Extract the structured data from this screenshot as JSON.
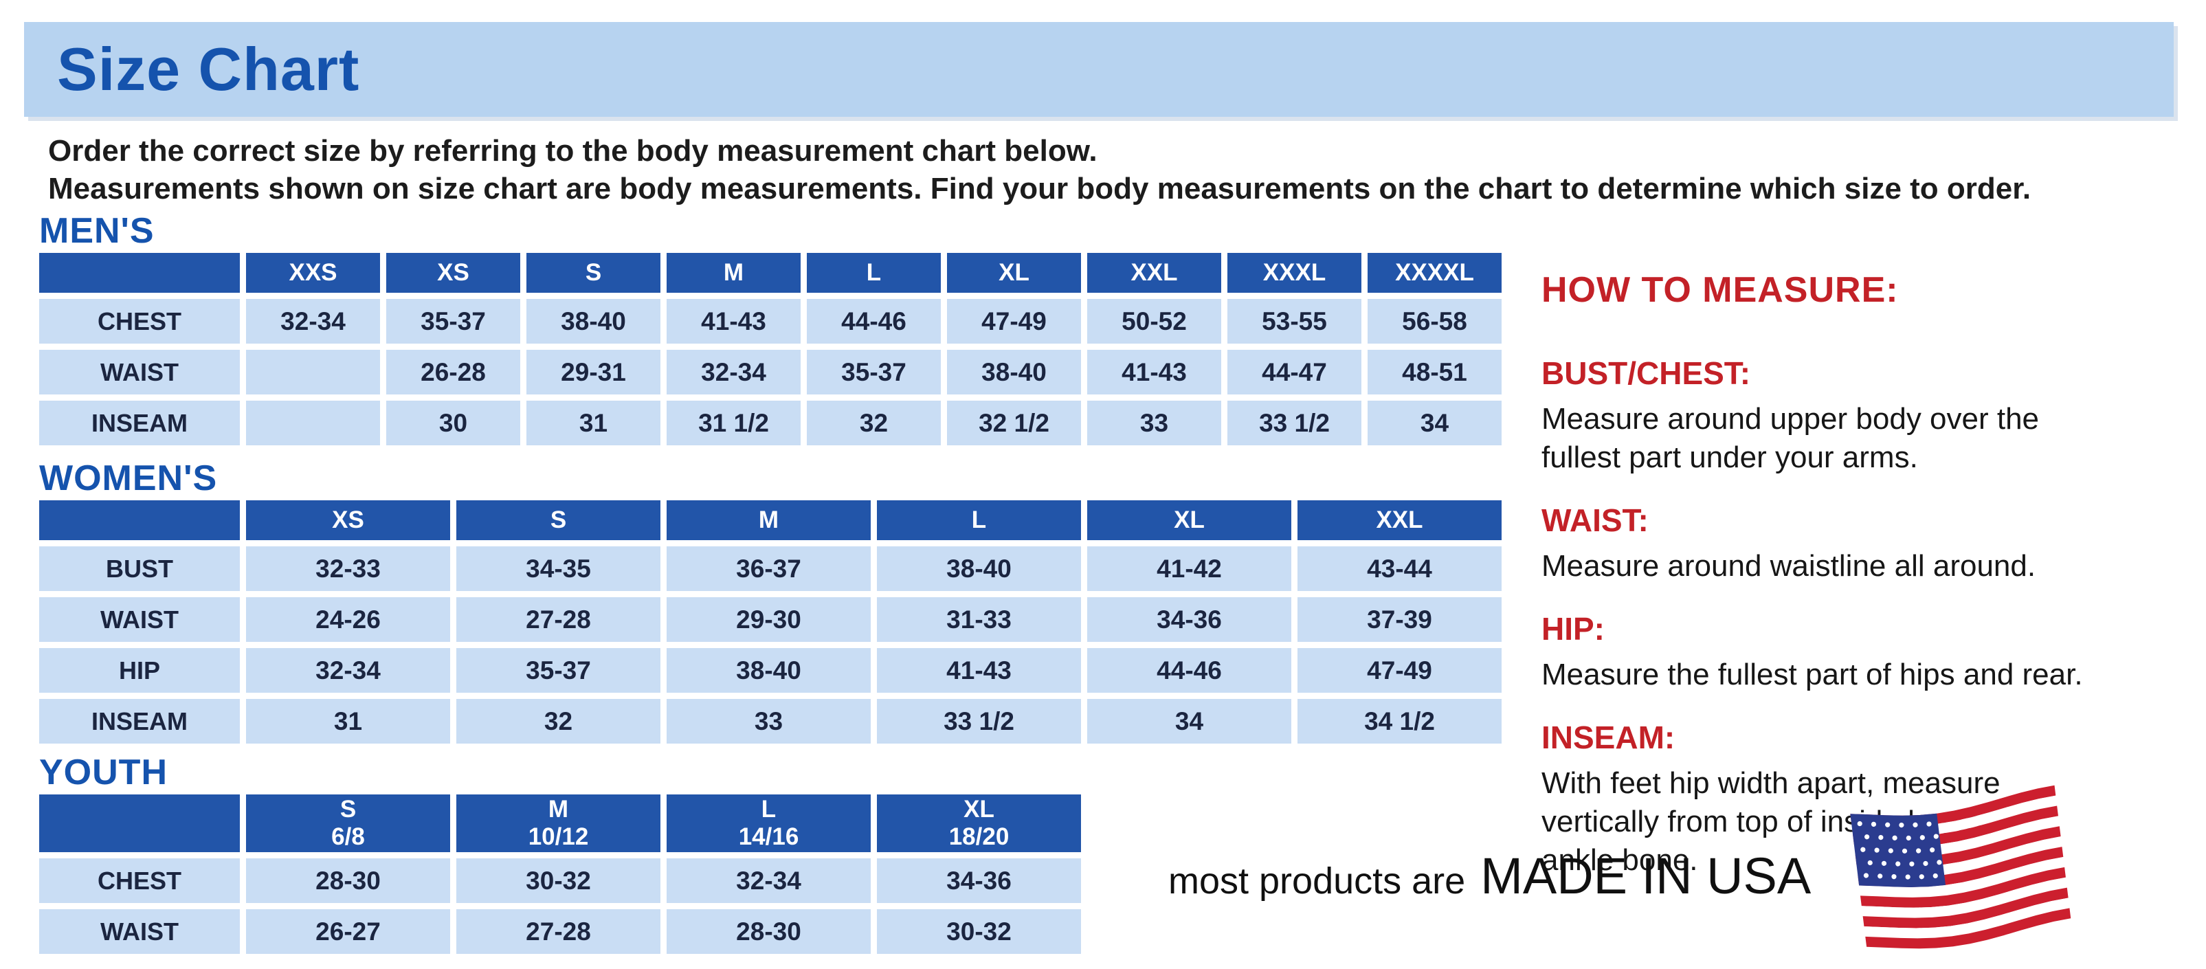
{
  "banner": {
    "title": "Size Chart"
  },
  "intro": {
    "line1": "Order the correct size by referring to the body measurement chart below.",
    "line2": "Measurements shown on size chart are body measurements.  Find your body measurements on the chart to determine which size to order."
  },
  "tables": [
    {
      "id": "mens",
      "section_label": "MEN'S",
      "columns": [
        "XXS",
        "XS",
        "S",
        "M",
        "L",
        "XL",
        "XXL",
        "XXXL",
        "XXXXL"
      ],
      "rows": [
        {
          "label": "CHEST",
          "values": [
            "32-34",
            "35-37",
            "38-40",
            "41-43",
            "44-46",
            "47-49",
            "50-52",
            "53-55",
            "56-58"
          ]
        },
        {
          "label": "WAIST",
          "values": [
            "",
            "26-28",
            "29-31",
            "32-34",
            "35-37",
            "38-40",
            "41-43",
            "44-47",
            "48-51"
          ]
        },
        {
          "label": "INSEAM",
          "values": [
            "",
            "30",
            "31",
            "31 1/2",
            "32",
            "32 1/2",
            "33",
            "33 1/2",
            "34"
          ]
        }
      ]
    },
    {
      "id": "womens",
      "section_label": "WOMEN'S",
      "columns": [
        "XS",
        "S",
        "M",
        "L",
        "XL",
        "XXL"
      ],
      "rows": [
        {
          "label": "BUST",
          "values": [
            "32-33",
            "34-35",
            "36-37",
            "38-40",
            "41-42",
            "43-44"
          ]
        },
        {
          "label": "WAIST",
          "values": [
            "24-26",
            "27-28",
            "29-30",
            "31-33",
            "34-36",
            "37-39"
          ]
        },
        {
          "label": "HIP",
          "values": [
            "32-34",
            "35-37",
            "38-40",
            "41-43",
            "44-46",
            "47-49"
          ]
        },
        {
          "label": "INSEAM",
          "values": [
            "31",
            "32",
            "33",
            "33 1/2",
            "34",
            "34 1/2"
          ]
        }
      ]
    },
    {
      "id": "youth",
      "section_label": "YOUTH",
      "columns": [
        {
          "label": "S",
          "sub": "6/8"
        },
        {
          "label": "M",
          "sub": "10/12"
        },
        {
          "label": "L",
          "sub": "14/16"
        },
        {
          "label": "XL",
          "sub": "18/20"
        }
      ],
      "rows": [
        {
          "label": "CHEST",
          "values": [
            "28-30",
            "30-32",
            "32-34",
            "34-36"
          ]
        },
        {
          "label": "WAIST",
          "values": [
            "26-27",
            "27-28",
            "28-30",
            "30-32"
          ]
        }
      ]
    }
  ],
  "how_to_measure": {
    "title": "HOW TO MEASURE:",
    "items": [
      {
        "label": "BUST/CHEST:",
        "text": "Measure around upper body over the\nfullest part under your arms."
      },
      {
        "label": "WAIST:",
        "text": "Measure around waistline all around."
      },
      {
        "label": "HIP:",
        "text": "Measure the fullest part of hips and rear."
      },
      {
        "label": "INSEAM:",
        "text": "With feet hip width apart, measure\nvertically from top of inside leg to\nankle bone."
      }
    ]
  },
  "footer": {
    "prefix": "most products are",
    "emphasis": "MADE IN USA",
    "flag_icon": "usa-flag-icon"
  },
  "colors": {
    "banner_bg": "#b7d3f0",
    "heading_blue": "#1553ad",
    "table_header_blue": "#2255a9",
    "cell_bg": "#c9ddf4",
    "cell_text": "#1b2540",
    "accent_red": "#c32127",
    "flag_red": "#cc1f2e",
    "flag_blue": "#2b3c8f"
  }
}
